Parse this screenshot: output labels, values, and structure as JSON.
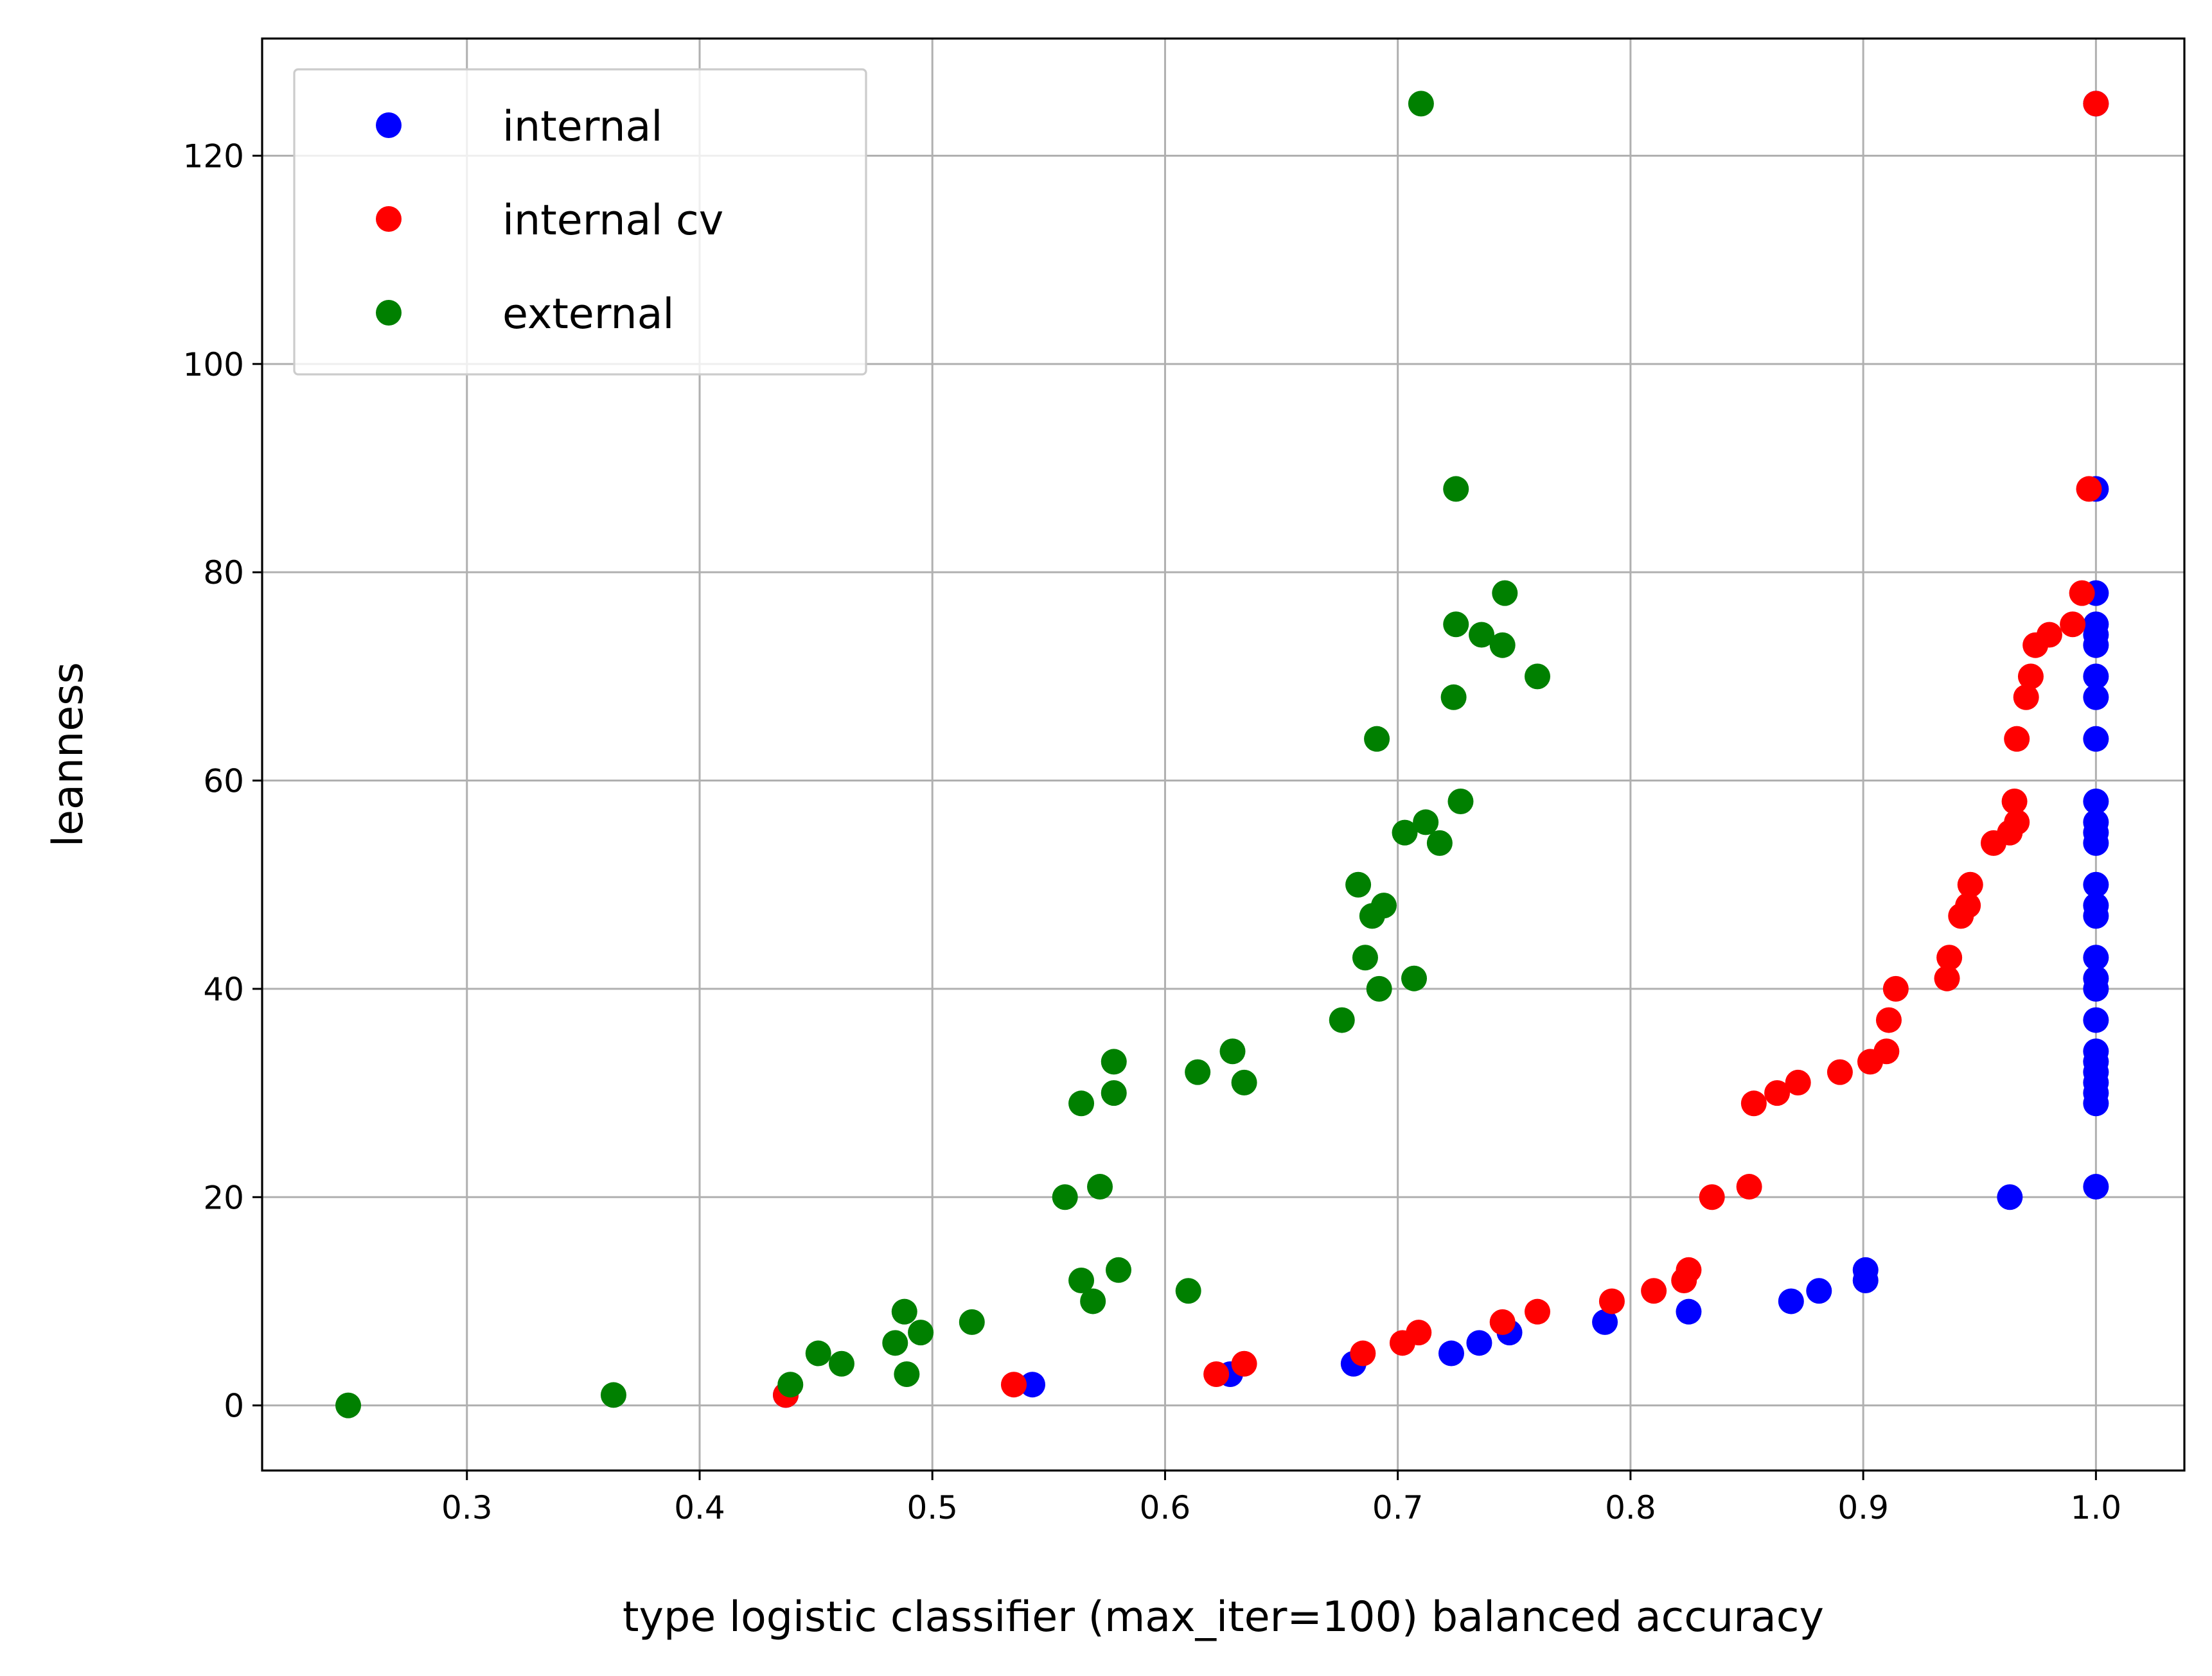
{
  "chart_data": {
    "type": "scatter",
    "title": "",
    "xlabel": "type logistic classifier (max_iter=100) balanced accuracy",
    "ylabel": "leanness",
    "xlim": [
      0.212,
      1.038
    ],
    "ylim": [
      -6.25,
      131.25
    ],
    "xticks": [
      0.3,
      0.4,
      0.5,
      0.6,
      0.7,
      0.8,
      0.9,
      1.0
    ],
    "xtick_labels": [
      "0.3",
      "0.4",
      "0.5",
      "0.6",
      "0.7",
      "0.8",
      "0.9",
      "1.0"
    ],
    "yticks": [
      0,
      20,
      40,
      60,
      80,
      100,
      120
    ],
    "ytick_labels": [
      "0",
      "20",
      "40",
      "60",
      "80",
      "100",
      "120"
    ],
    "grid": true,
    "legend_position": "top-left",
    "series": [
      {
        "name": "internal",
        "color": "#0000ff",
        "points": [
          [
            0.437,
            1
          ],
          [
            0.543,
            2
          ],
          [
            0.628,
            3
          ],
          [
            0.681,
            4
          ],
          [
            0.723,
            5
          ],
          [
            0.735,
            6
          ],
          [
            0.748,
            7
          ],
          [
            0.789,
            8
          ],
          [
            0.825,
            9
          ],
          [
            0.869,
            10
          ],
          [
            0.881,
            11
          ],
          [
            0.901,
            12
          ],
          [
            0.901,
            13
          ],
          [
            0.963,
            20
          ],
          [
            1.0,
            21
          ],
          [
            1.0,
            29
          ],
          [
            1.0,
            30
          ],
          [
            1.0,
            31
          ],
          [
            1.0,
            32
          ],
          [
            1.0,
            33
          ],
          [
            1.0,
            34
          ],
          [
            1.0,
            37
          ],
          [
            1.0,
            40
          ],
          [
            1.0,
            41
          ],
          [
            1.0,
            43
          ],
          [
            1.0,
            47
          ],
          [
            1.0,
            48
          ],
          [
            1.0,
            50
          ],
          [
            1.0,
            54
          ],
          [
            1.0,
            55
          ],
          [
            1.0,
            56
          ],
          [
            1.0,
            58
          ],
          [
            1.0,
            64
          ],
          [
            1.0,
            68
          ],
          [
            1.0,
            70
          ],
          [
            1.0,
            73
          ],
          [
            1.0,
            74
          ],
          [
            1.0,
            75
          ],
          [
            1.0,
            78
          ],
          [
            1.0,
            88
          ],
          [
            1.0,
            125
          ]
        ]
      },
      {
        "name": "internal cv",
        "color": "#ff0000",
        "points": [
          [
            0.437,
            1
          ],
          [
            0.535,
            2
          ],
          [
            0.622,
            3
          ],
          [
            0.634,
            4
          ],
          [
            0.685,
            5
          ],
          [
            0.702,
            6
          ],
          [
            0.709,
            7
          ],
          [
            0.745,
            8
          ],
          [
            0.76,
            9
          ],
          [
            0.792,
            10
          ],
          [
            0.81,
            11
          ],
          [
            0.823,
            12
          ],
          [
            0.825,
            13
          ],
          [
            0.851,
            21
          ],
          [
            0.835,
            20
          ],
          [
            0.853,
            29
          ],
          [
            0.863,
            30
          ],
          [
            0.872,
            31
          ],
          [
            0.89,
            32
          ],
          [
            0.903,
            33
          ],
          [
            0.91,
            34
          ],
          [
            0.911,
            37
          ],
          [
            0.914,
            40
          ],
          [
            0.936,
            41
          ],
          [
            0.937,
            43
          ],
          [
            0.942,
            47
          ],
          [
            0.945,
            48
          ],
          [
            0.946,
            50
          ],
          [
            0.956,
            54
          ],
          [
            0.963,
            55
          ],
          [
            0.966,
            56
          ],
          [
            0.965,
            58
          ],
          [
            0.966,
            64
          ],
          [
            0.97,
            68
          ],
          [
            0.972,
            70
          ],
          [
            0.974,
            73
          ],
          [
            0.98,
            74
          ],
          [
            0.99,
            75
          ],
          [
            0.994,
            78
          ],
          [
            0.997,
            88
          ],
          [
            1.0,
            125
          ]
        ]
      },
      {
        "name": "external",
        "color": "#008000",
        "points": [
          [
            0.249,
            0
          ],
          [
            0.363,
            1
          ],
          [
            0.439,
            2
          ],
          [
            0.489,
            3
          ],
          [
            0.461,
            4
          ],
          [
            0.451,
            5
          ],
          [
            0.484,
            6
          ],
          [
            0.495,
            7
          ],
          [
            0.517,
            8
          ],
          [
            0.488,
            9
          ],
          [
            0.569,
            10
          ],
          [
            0.61,
            11
          ],
          [
            0.564,
            12
          ],
          [
            0.58,
            13
          ],
          [
            0.557,
            20
          ],
          [
            0.572,
            21
          ],
          [
            0.564,
            29
          ],
          [
            0.578,
            30
          ],
          [
            0.634,
            31
          ],
          [
            0.614,
            32
          ],
          [
            0.578,
            33
          ],
          [
            0.629,
            34
          ],
          [
            0.676,
            37
          ],
          [
            0.692,
            40
          ],
          [
            0.707,
            41
          ],
          [
            0.686,
            43
          ],
          [
            0.689,
            47
          ],
          [
            0.694,
            48
          ],
          [
            0.683,
            50
          ],
          [
            0.718,
            54
          ],
          [
            0.703,
            55
          ],
          [
            0.712,
            56
          ],
          [
            0.727,
            58
          ],
          [
            0.691,
            64
          ],
          [
            0.724,
            68
          ],
          [
            0.76,
            70
          ],
          [
            0.745,
            73
          ],
          [
            0.736,
            74
          ],
          [
            0.725,
            75
          ],
          [
            0.746,
            78
          ],
          [
            0.725,
            88
          ],
          [
            0.71,
            125
          ]
        ]
      }
    ]
  }
}
